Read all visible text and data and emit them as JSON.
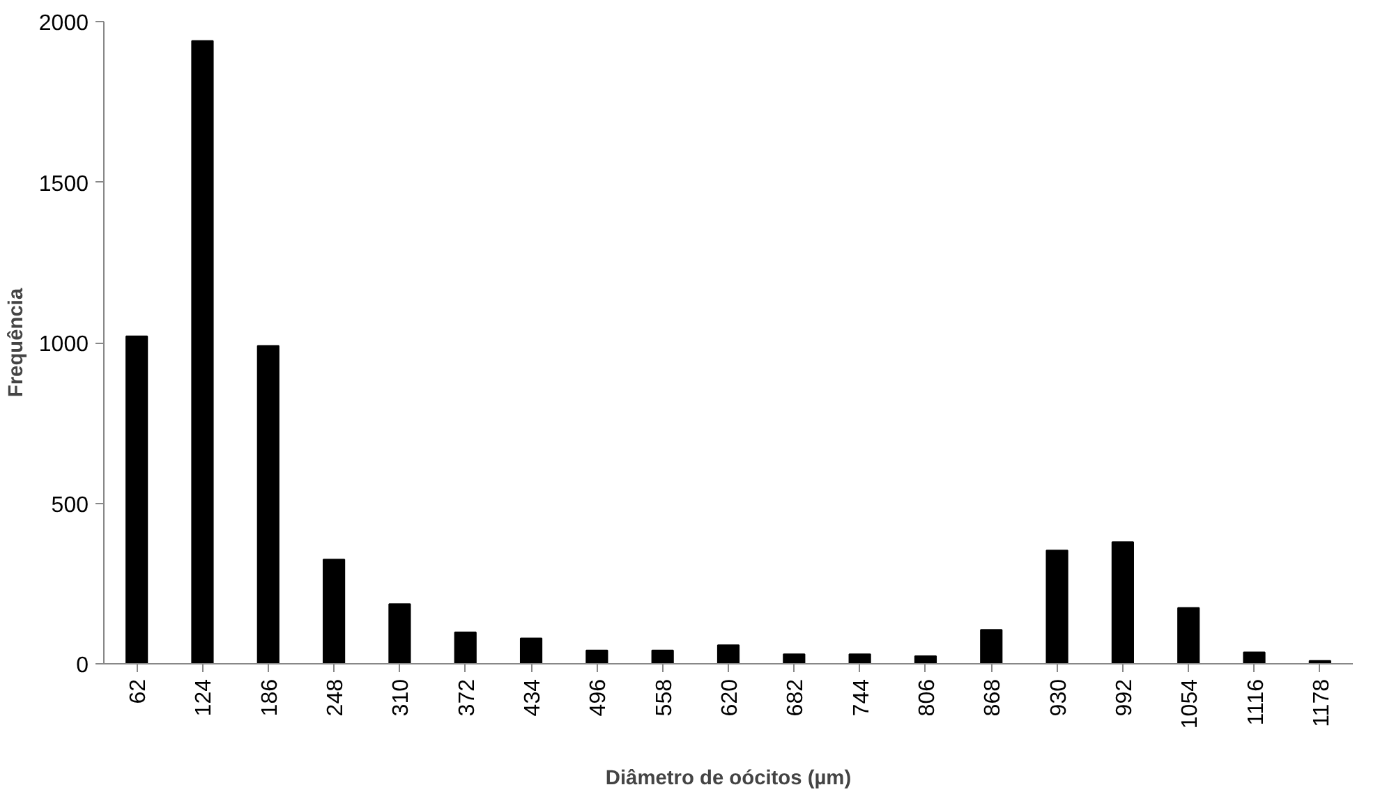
{
  "chart_data": {
    "type": "bar",
    "xlabel": "Diâmetro de oócitos (µm)",
    "ylabel": "Frequência",
    "categories": [
      "62",
      "124",
      "186",
      "248",
      "310",
      "372",
      "434",
      "496",
      "558",
      "620",
      "682",
      "744",
      "806",
      "868",
      "930",
      "992",
      "1054",
      "1116",
      "1178"
    ],
    "values": [
      1020,
      1940,
      990,
      325,
      186,
      98,
      79,
      42,
      42,
      58,
      30,
      30,
      24,
      106,
      353,
      379,
      174,
      36,
      9
    ],
    "color": "#000000",
    "ylim": [
      0,
      2000
    ],
    "yticks": [
      0,
      500,
      1000,
      1500,
      2000
    ],
    "grid": false
  }
}
